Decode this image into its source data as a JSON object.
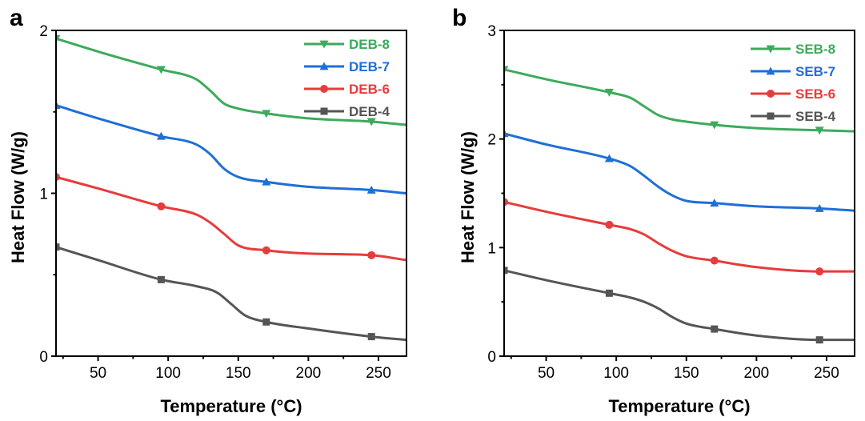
{
  "chart_data": [
    {
      "panel_label": "a",
      "type": "line",
      "xlabel": "Temperature (°C)",
      "ylabel": "Heat Flow (W/g)",
      "xlim": [
        20,
        270
      ],
      "ylim": [
        0,
        2
      ],
      "xticks": [
        50,
        100,
        150,
        200,
        250
      ],
      "yticks": [
        0,
        1,
        2
      ],
      "legend_position": "top-right",
      "grid": false,
      "series": [
        {
          "name": "DEB-8",
          "color": "#3daa5c",
          "marker": "triangle-down",
          "x": [
            20,
            50,
            95,
            120,
            130,
            140,
            150,
            170,
            200,
            245,
            270
          ],
          "y": [
            1.95,
            1.87,
            1.76,
            1.7,
            1.63,
            1.55,
            1.52,
            1.49,
            1.46,
            1.44,
            1.42
          ]
        },
        {
          "name": "DEB-7",
          "color": "#1f6fd6",
          "marker": "triangle-up",
          "x": [
            20,
            50,
            95,
            120,
            130,
            140,
            150,
            170,
            200,
            245,
            270
          ],
          "y": [
            1.54,
            1.46,
            1.35,
            1.3,
            1.24,
            1.15,
            1.1,
            1.07,
            1.04,
            1.02,
            1.0
          ]
        },
        {
          "name": "DEB-6",
          "color": "#e83b3b",
          "marker": "circle",
          "x": [
            20,
            50,
            95,
            120,
            130,
            140,
            150,
            170,
            200,
            245,
            270
          ],
          "y": [
            1.1,
            1.03,
            0.92,
            0.87,
            0.82,
            0.75,
            0.68,
            0.65,
            0.63,
            0.62,
            0.59
          ]
        },
        {
          "name": "DEB-4",
          "color": "#555555",
          "marker": "square",
          "x": [
            20,
            50,
            95,
            120,
            135,
            145,
            155,
            170,
            200,
            245,
            270
          ],
          "y": [
            0.67,
            0.59,
            0.47,
            0.43,
            0.39,
            0.32,
            0.25,
            0.21,
            0.17,
            0.12,
            0.1
          ]
        }
      ]
    },
    {
      "panel_label": "b",
      "type": "line",
      "xlabel": "Temperature (°C)",
      "ylabel": "Heat Flow (W/g)",
      "xlim": [
        20,
        270
      ],
      "ylim": [
        0,
        3
      ],
      "xticks": [
        50,
        100,
        150,
        200,
        250
      ],
      "yticks": [
        0,
        1,
        2,
        3
      ],
      "legend_position": "top-right",
      "grid": false,
      "series": [
        {
          "name": "SEB-8",
          "color": "#3daa5c",
          "marker": "triangle-down",
          "x": [
            20,
            50,
            95,
            110,
            120,
            130,
            140,
            150,
            170,
            200,
            245,
            270
          ],
          "y": [
            2.64,
            2.55,
            2.43,
            2.38,
            2.3,
            2.22,
            2.18,
            2.16,
            2.13,
            2.1,
            2.08,
            2.07
          ]
        },
        {
          "name": "SEB-7",
          "color": "#1f6fd6",
          "marker": "triangle-up",
          "x": [
            20,
            50,
            95,
            110,
            120,
            130,
            140,
            150,
            170,
            200,
            245,
            270
          ],
          "y": [
            2.05,
            1.95,
            1.82,
            1.75,
            1.66,
            1.56,
            1.48,
            1.43,
            1.41,
            1.38,
            1.36,
            1.34
          ]
        },
        {
          "name": "SEB-6",
          "color": "#e83b3b",
          "marker": "circle",
          "x": [
            20,
            50,
            95,
            110,
            120,
            130,
            140,
            150,
            170,
            200,
            245,
            270
          ],
          "y": [
            1.42,
            1.33,
            1.21,
            1.17,
            1.12,
            1.04,
            0.97,
            0.92,
            0.88,
            0.82,
            0.78,
            0.78
          ]
        },
        {
          "name": "SEB-4",
          "color": "#555555",
          "marker": "square",
          "x": [
            20,
            50,
            95,
            110,
            120,
            130,
            140,
            150,
            170,
            200,
            245,
            270
          ],
          "y": [
            0.79,
            0.7,
            0.58,
            0.54,
            0.5,
            0.44,
            0.36,
            0.3,
            0.25,
            0.19,
            0.15,
            0.15
          ]
        }
      ]
    }
  ]
}
